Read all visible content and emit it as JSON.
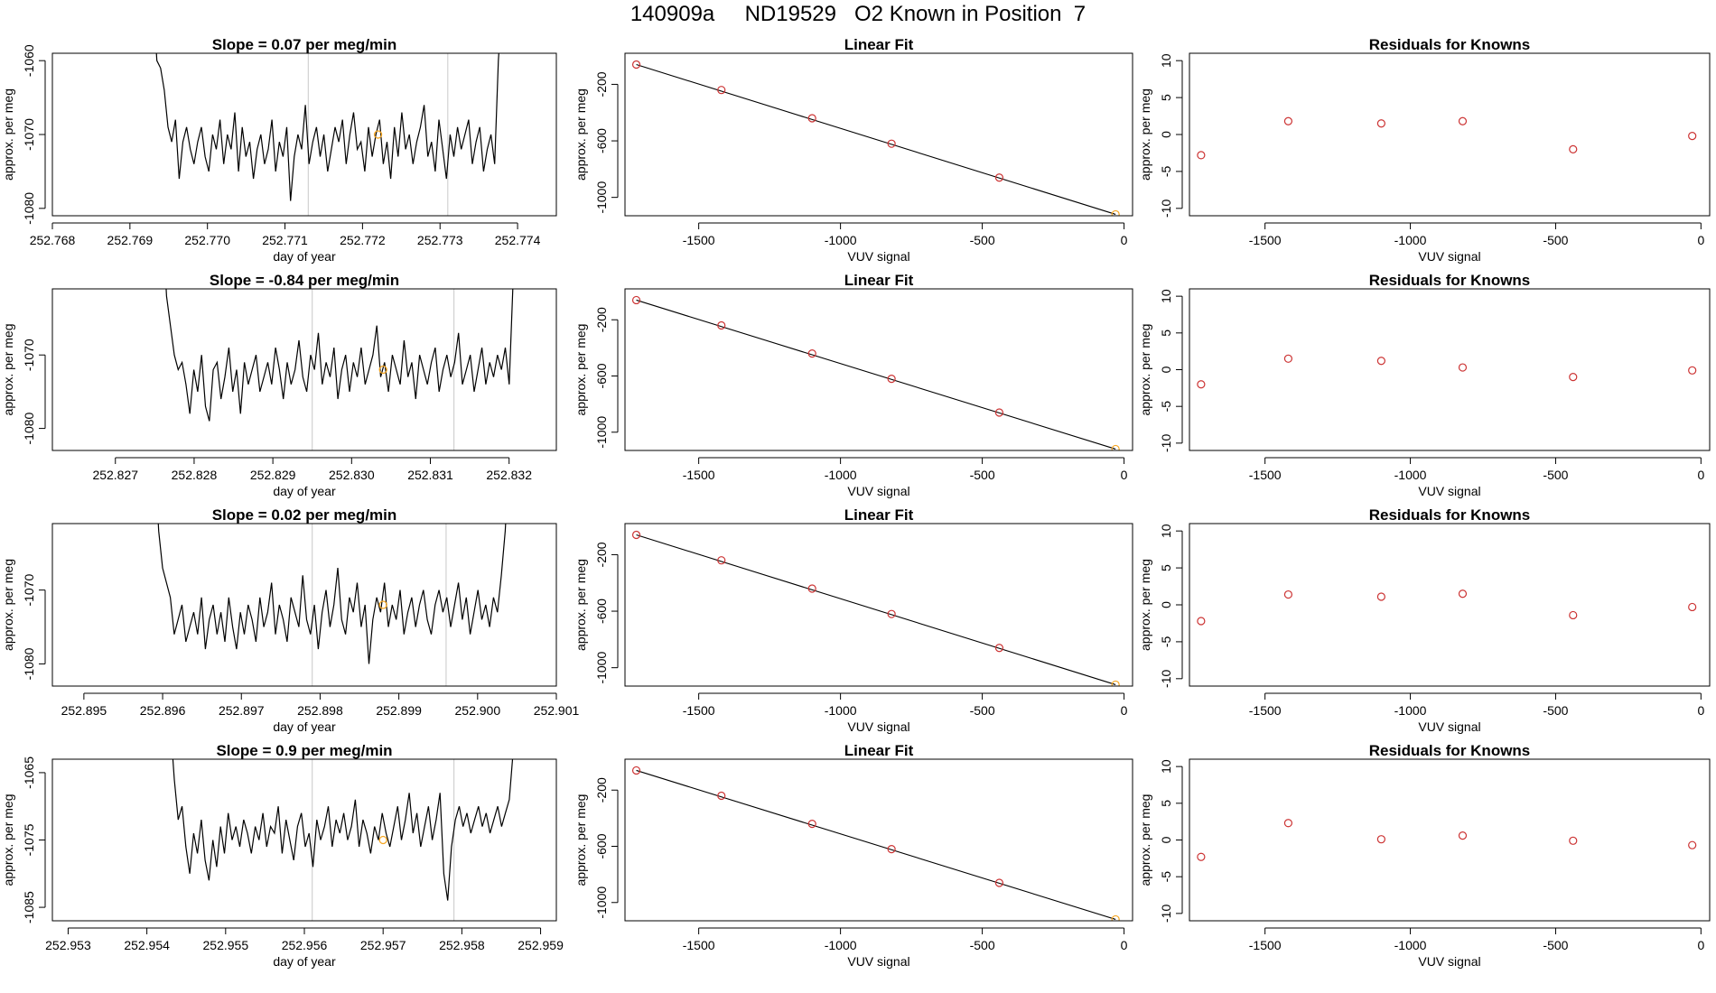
{
  "main_title": "140909a     ND19529   O2 Known in Position  7",
  "colors": {
    "line": "#000000",
    "marker_orange": "#f5a623",
    "marker_red": "#cc3333",
    "vline": "#c8c8c8"
  },
  "chart_data": [
    {
      "type": "line",
      "panel": "time-series-1",
      "title": "Slope =  0.07  per meg/min",
      "xlabel": "day of year",
      "ylabel": "approx. per meg",
      "xlim": [
        252.768,
        252.7745
      ],
      "ylim": [
        -1081,
        -1059
      ],
      "xticks": [
        252.768,
        252.769,
        252.77,
        252.771,
        252.772,
        252.773,
        252.774
      ],
      "xtick_labels": [
        "252.768",
        "252.769",
        "252.770",
        "252.771",
        "252.772",
        "252.773",
        "252.774"
      ],
      "yticks": [
        -1080,
        -1070,
        -1060
      ],
      "ytick_labels": [
        "-1080",
        "-1070",
        "-1060"
      ],
      "x_start": 252.7693,
      "x_end": 252.7738,
      "series_shape": [
        -1052,
        -1060,
        -1061,
        -1064,
        -1069,
        -1071,
        -1068,
        -1076,
        -1071,
        -1069,
        -1072,
        -1074,
        -1071,
        -1069,
        -1073,
        -1075,
        -1070,
        -1072,
        -1068,
        -1074,
        -1070,
        -1072,
        -1067,
        -1075,
        -1069,
        -1073,
        -1071,
        -1076,
        -1072,
        -1070,
        -1074,
        -1072,
        -1068,
        -1075,
        -1071,
        -1073,
        -1069,
        -1079,
        -1073,
        -1070,
        -1072,
        -1066,
        -1074,
        -1071,
        -1069,
        -1073,
        -1070,
        -1075,
        -1072,
        -1069,
        -1071,
        -1068,
        -1074,
        -1070,
        -1067,
        -1072,
        -1071,
        -1075,
        -1069,
        -1073,
        -1070,
        -1068,
        -1074,
        -1071,
        -1076,
        -1069,
        -1073,
        -1067,
        -1072,
        -1070,
        -1074,
        -1071,
        -1069,
        -1066,
        -1073,
        -1071,
        -1075,
        -1068,
        -1072,
        -1076,
        -1070,
        -1073,
        -1069,
        -1072,
        -1070,
        -1068,
        -1074,
        -1071,
        -1069,
        -1075,
        -1072,
        -1070,
        -1074,
        -1060,
        -1052
      ],
      "vlines": [
        252.7713,
        252.7731
      ],
      "marker": {
        "x": 252.7722,
        "y": -1070
      }
    },
    {
      "type": "scatter",
      "panel": "linear-fit-1",
      "title": "Linear Fit",
      "xlabel": "VUV signal",
      "ylabel": "approx. per meg",
      "xlim": [
        -1760,
        30
      ],
      "ylim": [
        -1130,
        20
      ],
      "xticks": [
        -1500,
        -1000,
        -500,
        0
      ],
      "xtick_labels": [
        "-1500",
        "-1000",
        "-500",
        "0"
      ],
      "yticks": [
        -1000,
        -600,
        -200
      ],
      "ytick_labels": [
        "-1000",
        "-600",
        "-200"
      ],
      "x": [
        -1720,
        -1420,
        -1100,
        -820,
        -440,
        -30
      ],
      "y": [
        -60,
        -240,
        -440,
        -620,
        -860,
        -1120
      ],
      "fit_line": {
        "x": [
          -1720,
          -30
        ],
        "y": [
          -60,
          -1120
        ]
      }
    },
    {
      "type": "scatter",
      "panel": "residuals-1",
      "title": "Residuals for Knowns",
      "xlabel": "VUV signal",
      "ylabel": "approx. per meg",
      "xlim": [
        -1760,
        30
      ],
      "ylim": [
        -11,
        11
      ],
      "xticks": [
        -1500,
        -1000,
        -500,
        0
      ],
      "xtick_labels": [
        "-1500",
        "-1000",
        "-500",
        "0"
      ],
      "yticks": [
        -10,
        -5,
        0,
        5,
        10
      ],
      "ytick_labels": [
        "-10",
        "-5",
        "0",
        "5",
        "10"
      ],
      "x": [
        -1720,
        -1420,
        -1100,
        -820,
        -440,
        -30
      ],
      "y": [
        -2.8,
        1.8,
        1.5,
        1.8,
        -2.0,
        -0.2
      ]
    },
    {
      "type": "line",
      "panel": "time-series-2",
      "title": "Slope =  -0.84  per meg/min",
      "xlabel": "day of year",
      "ylabel": "approx. per meg",
      "xlim": [
        252.8262,
        252.8326
      ],
      "ylim": [
        -1083,
        -1061
      ],
      "xticks": [
        252.827,
        252.828,
        252.829,
        252.83,
        252.831,
        252.832
      ],
      "xtick_labels": [
        "252.827",
        "252.828",
        "252.829",
        "252.830",
        "252.831",
        "252.832"
      ],
      "yticks": [
        -1080,
        -1070
      ],
      "ytick_labels": [
        "-1080",
        "-1070"
      ],
      "x_start": 252.8276,
      "x_end": 252.8321,
      "series_shape": [
        -1052,
        -1062,
        -1066,
        -1070,
        -1072,
        -1071,
        -1074,
        -1078,
        -1072,
        -1075,
        -1070,
        -1077,
        -1079,
        -1072,
        -1071,
        -1076,
        -1073,
        -1069,
        -1075,
        -1072,
        -1078,
        -1071,
        -1074,
        -1072,
        -1070,
        -1075,
        -1073,
        -1071,
        -1074,
        -1069,
        -1072,
        -1076,
        -1071,
        -1074,
        -1072,
        -1068,
        -1073,
        -1075,
        -1070,
        -1072,
        -1067,
        -1074,
        -1071,
        -1073,
        -1069,
        -1076,
        -1072,
        -1070,
        -1075,
        -1071,
        -1073,
        -1069,
        -1074,
        -1072,
        -1070,
        -1066,
        -1073,
        -1071,
        -1075,
        -1070,
        -1072,
        -1074,
        -1068,
        -1073,
        -1071,
        -1076,
        -1070,
        -1072,
        -1074,
        -1071,
        -1069,
        -1075,
        -1072,
        -1070,
        -1073,
        -1071,
        -1067,
        -1074,
        -1072,
        -1070,
        -1075,
        -1072,
        -1069,
        -1074,
        -1071,
        -1073,
        -1070,
        -1072,
        -1069,
        -1074,
        -1060,
        -1052
      ],
      "vlines": [
        252.8295,
        252.8313
      ],
      "marker": {
        "x": 252.8304,
        "y": -1072
      }
    },
    {
      "type": "scatter",
      "panel": "linear-fit-2",
      "title": "Linear Fit",
      "xlabel": "VUV signal",
      "ylabel": "approx. per meg",
      "xlim": [
        -1760,
        30
      ],
      "ylim": [
        -1130,
        20
      ],
      "xticks": [
        -1500,
        -1000,
        -500,
        0
      ],
      "xtick_labels": [
        "-1500",
        "-1000",
        "-500",
        "0"
      ],
      "yticks": [
        -1000,
        -600,
        -200
      ],
      "ytick_labels": [
        "-1000",
        "-600",
        "-200"
      ],
      "x": [
        -1720,
        -1420,
        -1100,
        -820,
        -440,
        -30
      ],
      "y": [
        -60,
        -240,
        -440,
        -620,
        -860,
        -1120
      ],
      "fit_line": {
        "x": [
          -1720,
          -30
        ],
        "y": [
          -60,
          -1120
        ]
      }
    },
    {
      "type": "scatter",
      "panel": "residuals-2",
      "title": "Residuals for Knowns",
      "xlabel": "VUV signal",
      "ylabel": "approx. per meg",
      "xlim": [
        -1760,
        30
      ],
      "ylim": [
        -11,
        11
      ],
      "xticks": [
        -1500,
        -1000,
        -500,
        0
      ],
      "xtick_labels": [
        "-1500",
        "-1000",
        "-500",
        "0"
      ],
      "yticks": [
        -10,
        -5,
        0,
        5,
        10
      ],
      "ytick_labels": [
        "-10",
        "-5",
        "0",
        "5",
        "10"
      ],
      "x": [
        -1720,
        -1420,
        -1100,
        -820,
        -440,
        -30
      ],
      "y": [
        -2.0,
        1.5,
        1.2,
        0.3,
        -1.0,
        -0.1
      ]
    },
    {
      "type": "line",
      "panel": "time-series-3",
      "title": "Slope =  0.02  per meg/min",
      "xlabel": "day of year",
      "ylabel": "approx. per meg",
      "xlim": [
        252.8946,
        252.901
      ],
      "ylim": [
        -1083,
        -1061
      ],
      "xticks": [
        252.895,
        252.896,
        252.897,
        252.898,
        252.899,
        252.9,
        252.901
      ],
      "xtick_labels": [
        "252.895",
        "252.896",
        "252.897",
        "252.898",
        "252.899",
        "252.900",
        "252.901"
      ],
      "yticks": [
        -1080,
        -1070
      ],
      "ytick_labels": [
        "-1080",
        "-1070"
      ],
      "x_start": 252.8959,
      "x_end": 252.9004,
      "series_shape": [
        -1052,
        -1062,
        -1067,
        -1069,
        -1071,
        -1076,
        -1074,
        -1072,
        -1077,
        -1075,
        -1073,
        -1076,
        -1071,
        -1078,
        -1074,
        -1072,
        -1076,
        -1073,
        -1077,
        -1071,
        -1075,
        -1078,
        -1073,
        -1076,
        -1072,
        -1074,
        -1077,
        -1071,
        -1075,
        -1073,
        -1069,
        -1076,
        -1072,
        -1074,
        -1077,
        -1071,
        -1073,
        -1075,
        -1068,
        -1074,
        -1076,
        -1072,
        -1078,
        -1073,
        -1070,
        -1075,
        -1072,
        -1067,
        -1074,
        -1076,
        -1071,
        -1073,
        -1069,
        -1075,
        -1072,
        -1080,
        -1074,
        -1071,
        -1073,
        -1069,
        -1075,
        -1072,
        -1074,
        -1070,
        -1076,
        -1073,
        -1071,
        -1075,
        -1072,
        -1070,
        -1074,
        -1076,
        -1072,
        -1070,
        -1073,
        -1071,
        -1075,
        -1072,
        -1069,
        -1074,
        -1071,
        -1076,
        -1073,
        -1070,
        -1074,
        -1072,
        -1075,
        -1071,
        -1073,
        -1068,
        -1062,
        -1052
      ],
      "vlines": [
        252.8979,
        252.8996
      ],
      "marker": {
        "x": 252.8988,
        "y": -1072
      }
    },
    {
      "type": "scatter",
      "panel": "linear-fit-3",
      "title": "Linear Fit",
      "xlabel": "VUV signal",
      "ylabel": "approx. per meg",
      "xlim": [
        -1760,
        30
      ],
      "ylim": [
        -1130,
        20
      ],
      "xticks": [
        -1500,
        -1000,
        -500,
        0
      ],
      "xtick_labels": [
        "-1500",
        "-1000",
        "-500",
        "0"
      ],
      "yticks": [
        -1000,
        -600,
        -200
      ],
      "ytick_labels": [
        "-1000",
        "-600",
        "-200"
      ],
      "x": [
        -1720,
        -1420,
        -1100,
        -820,
        -440,
        -30
      ],
      "y": [
        -60,
        -240,
        -440,
        -620,
        -860,
        -1120
      ],
      "fit_line": {
        "x": [
          -1720,
          -30
        ],
        "y": [
          -60,
          -1120
        ]
      }
    },
    {
      "type": "scatter",
      "panel": "residuals-3",
      "title": "Residuals for Knowns",
      "xlabel": "VUV signal",
      "ylabel": "approx. per meg",
      "xlim": [
        -1760,
        30
      ],
      "ylim": [
        -11,
        11
      ],
      "xticks": [
        -1500,
        -1000,
        -500,
        0
      ],
      "xtick_labels": [
        "-1500",
        "-1000",
        "-500",
        "0"
      ],
      "yticks": [
        -10,
        -5,
        0,
        5,
        10
      ],
      "ytick_labels": [
        "-10",
        "-5",
        "0",
        "5",
        "10"
      ],
      "x": [
        -1720,
        -1420,
        -1100,
        -820,
        -440,
        -30
      ],
      "y": [
        -2.2,
        1.4,
        1.1,
        1.5,
        -1.4,
        -0.3
      ]
    },
    {
      "type": "line",
      "panel": "time-series-4",
      "title": "Slope =  0.9  per meg/min",
      "xlabel": "day of year",
      "ylabel": "approx. per meg",
      "xlim": [
        252.9528,
        252.9592
      ],
      "ylim": [
        -1087,
        -1063
      ],
      "xticks": [
        252.953,
        252.954,
        252.955,
        252.956,
        252.957,
        252.958,
        252.959
      ],
      "xtick_labels": [
        "252.953",
        "252.954",
        "252.955",
        "252.956",
        "252.957",
        "252.958",
        "252.959"
      ],
      "yticks": [
        -1085,
        -1075,
        -1065
      ],
      "ytick_labels": [
        "-1085",
        "-1075",
        "-1065"
      ],
      "x_start": 252.9543,
      "x_end": 252.9587,
      "series_shape": [
        -1058,
        -1066,
        -1072,
        -1070,
        -1076,
        -1080,
        -1074,
        -1077,
        -1072,
        -1078,
        -1081,
        -1075,
        -1079,
        -1073,
        -1077,
        -1071,
        -1075,
        -1073,
        -1076,
        -1072,
        -1074,
        -1077,
        -1073,
        -1075,
        -1071,
        -1076,
        -1073,
        -1074,
        -1070,
        -1077,
        -1072,
        -1075,
        -1078,
        -1073,
        -1071,
        -1076,
        -1074,
        -1079,
        -1072,
        -1075,
        -1073,
        -1070,
        -1076,
        -1072,
        -1074,
        -1071,
        -1075,
        -1073,
        -1069,
        -1076,
        -1072,
        -1074,
        -1077,
        -1073,
        -1075,
        -1071,
        -1074,
        -1076,
        -1073,
        -1070,
        -1075,
        -1072,
        -1068,
        -1074,
        -1071,
        -1076,
        -1073,
        -1070,
        -1075,
        -1072,
        -1068,
        -1080,
        -1084,
        -1076,
        -1072,
        -1070,
        -1073,
        -1071,
        -1074,
        -1072,
        -1070,
        -1073,
        -1071,
        -1074,
        -1072,
        -1070,
        -1073,
        -1071,
        -1069,
        -1062,
        -1056
      ],
      "vlines": [
        252.9561,
        252.9579
      ],
      "marker": {
        "x": 252.957,
        "y": -1075
      }
    },
    {
      "type": "scatter",
      "panel": "linear-fit-4",
      "title": "Linear Fit",
      "xlabel": "VUV signal",
      "ylabel": "approx. per meg",
      "xlim": [
        -1760,
        30
      ],
      "ylim": [
        -1130,
        20
      ],
      "xticks": [
        -1500,
        -1000,
        -500,
        0
      ],
      "xtick_labels": [
        "-1500",
        "-1000",
        "-500",
        "0"
      ],
      "yticks": [
        -1000,
        -600,
        -200
      ],
      "ytick_labels": [
        "-1000",
        "-600",
        "-200"
      ],
      "x": [
        -1720,
        -1420,
        -1100,
        -820,
        -440,
        -30
      ],
      "y": [
        -60,
        -240,
        -440,
        -620,
        -860,
        -1120
      ],
      "fit_line": {
        "x": [
          -1720,
          -30
        ],
        "y": [
          -60,
          -1120
        ]
      }
    },
    {
      "type": "scatter",
      "panel": "residuals-4",
      "title": "Residuals for Knowns",
      "xlabel": "VUV signal",
      "ylabel": "approx. per meg",
      "xlim": [
        -1760,
        30
      ],
      "ylim": [
        -11,
        11
      ],
      "xticks": [
        -1500,
        -1000,
        -500,
        0
      ],
      "xtick_labels": [
        "-1500",
        "-1000",
        "-500",
        "0"
      ],
      "yticks": [
        -10,
        -5,
        0,
        5,
        10
      ],
      "ytick_labels": [
        "-10",
        "-5",
        "0",
        "5",
        "10"
      ],
      "x": [
        -1720,
        -1420,
        -1100,
        -820,
        -440,
        -30
      ],
      "y": [
        -2.3,
        2.3,
        0.1,
        0.6,
        -0.1,
        -0.7
      ]
    }
  ]
}
